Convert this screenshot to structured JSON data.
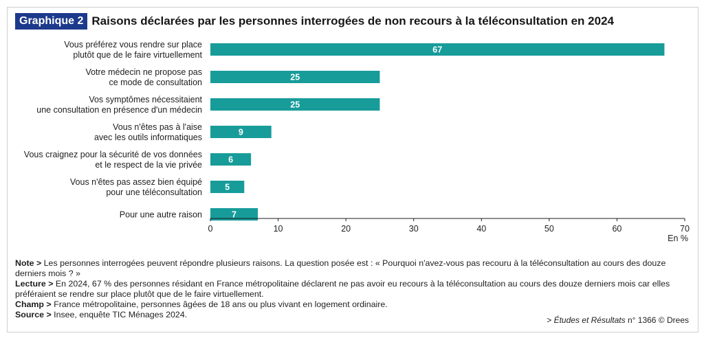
{
  "header": {
    "badge": "Graphique 2",
    "title": "Raisons déclarées par les personnes interrogées de non recours à la téléconsultation en 2024"
  },
  "chart_data": {
    "type": "bar",
    "orientation": "horizontal",
    "categories": [
      [
        "Vous préférez vous rendre sur place",
        "plutôt que de le faire virtuellement"
      ],
      [
        "Votre médecin ne propose pas",
        "ce mode de consultation"
      ],
      [
        "Vos symptômes nécessitaient",
        "une consultation en présence d'un médecin"
      ],
      [
        "Vous n'êtes pas à l'aise",
        "avec les outils informatiques"
      ],
      [
        "Vous craignez pour la sécurité de vos données",
        "et le respect de la vie privée"
      ],
      [
        "Vous n'êtes pas assez bien équipé",
        "pour une téléconsultation"
      ],
      [
        "Pour une autre raison"
      ]
    ],
    "values": [
      67,
      25,
      25,
      9,
      6,
      5,
      7
    ],
    "xlim": [
      0,
      70
    ],
    "xticks": [
      0,
      10,
      20,
      30,
      40,
      50,
      60,
      70
    ],
    "xlabel": "En %",
    "bar_color": "#179c9a",
    "label_color": "#ffffff",
    "grid": false
  },
  "notes": {
    "note_label": "Note >",
    "note_text": " Les personnes interrogées peuvent répondre plusieurs raisons. La question posée est : « Pourquoi n'avez-vous pas recouru à la téléconsultation au cours des douze derniers mois ? »",
    "lecture_label": "Lecture >",
    "lecture_text": " En 2024, 67 % des personnes résidant en France métropolitaine déclarent ne pas avoir eu recours à la téléconsultation au cours des douze derniers mois car elles préféraient se rendre sur place plutôt que de le faire virtuellement.",
    "champ_label": "Champ >",
    "champ_text": " France métropolitaine, personnes âgées de 18 ans ou plus vivant en logement ordinaire.",
    "source_label": "Source >",
    "source_text": " Insee, enquête TIC Ménages 2024."
  },
  "credit": {
    "prefix": "> ",
    "publication": "Études et Résultats",
    "suffix": " n° 1366 © Drees"
  }
}
